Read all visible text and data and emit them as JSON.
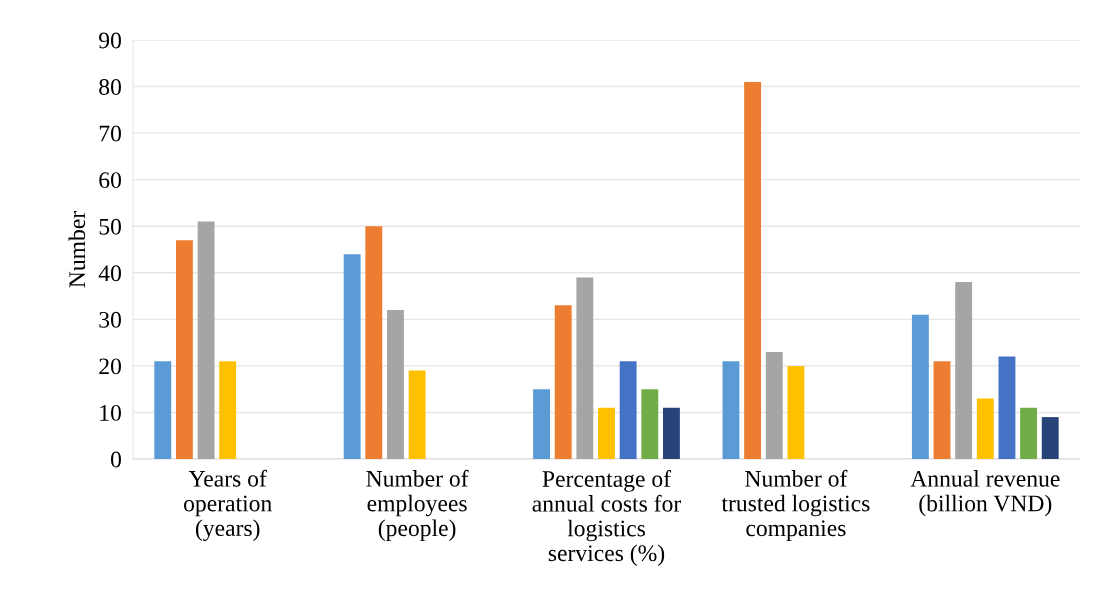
{
  "chart_data": {
    "type": "bar",
    "ylabel": "Number",
    "categories": [
      "Years of\noperation\n(years)",
      "Number of\nemployees\n(people)",
      "Percentage of\nannual costs for\nlogistics\nservices (%)",
      "Number of\ntrusted logistics\ncompanies",
      "Annual revenue\n(billion VND)"
    ],
    "series": [
      {
        "color": "#5b9bd5",
        "values": [
          21,
          44,
          15,
          21,
          31
        ]
      },
      {
        "color": "#ed7d31",
        "values": [
          47,
          50,
          33,
          81,
          21
        ]
      },
      {
        "color": "#a5a5a5",
        "values": [
          51,
          32,
          39,
          23,
          38
        ]
      },
      {
        "color": "#ffc000",
        "values": [
          21,
          19,
          11,
          20,
          13
        ]
      },
      {
        "color": "#4472c4",
        "values": [
          null,
          null,
          21,
          null,
          22
        ]
      },
      {
        "color": "#70ad47",
        "values": [
          null,
          null,
          15,
          null,
          11
        ]
      },
      {
        "color": "#264478",
        "values": [
          null,
          null,
          11,
          null,
          9
        ]
      }
    ],
    "ylim": [
      0,
      90
    ],
    "yticks": [
      0,
      10,
      20,
      30,
      40,
      50,
      60,
      70,
      80,
      90
    ],
    "grid": "y",
    "legend": false
  }
}
